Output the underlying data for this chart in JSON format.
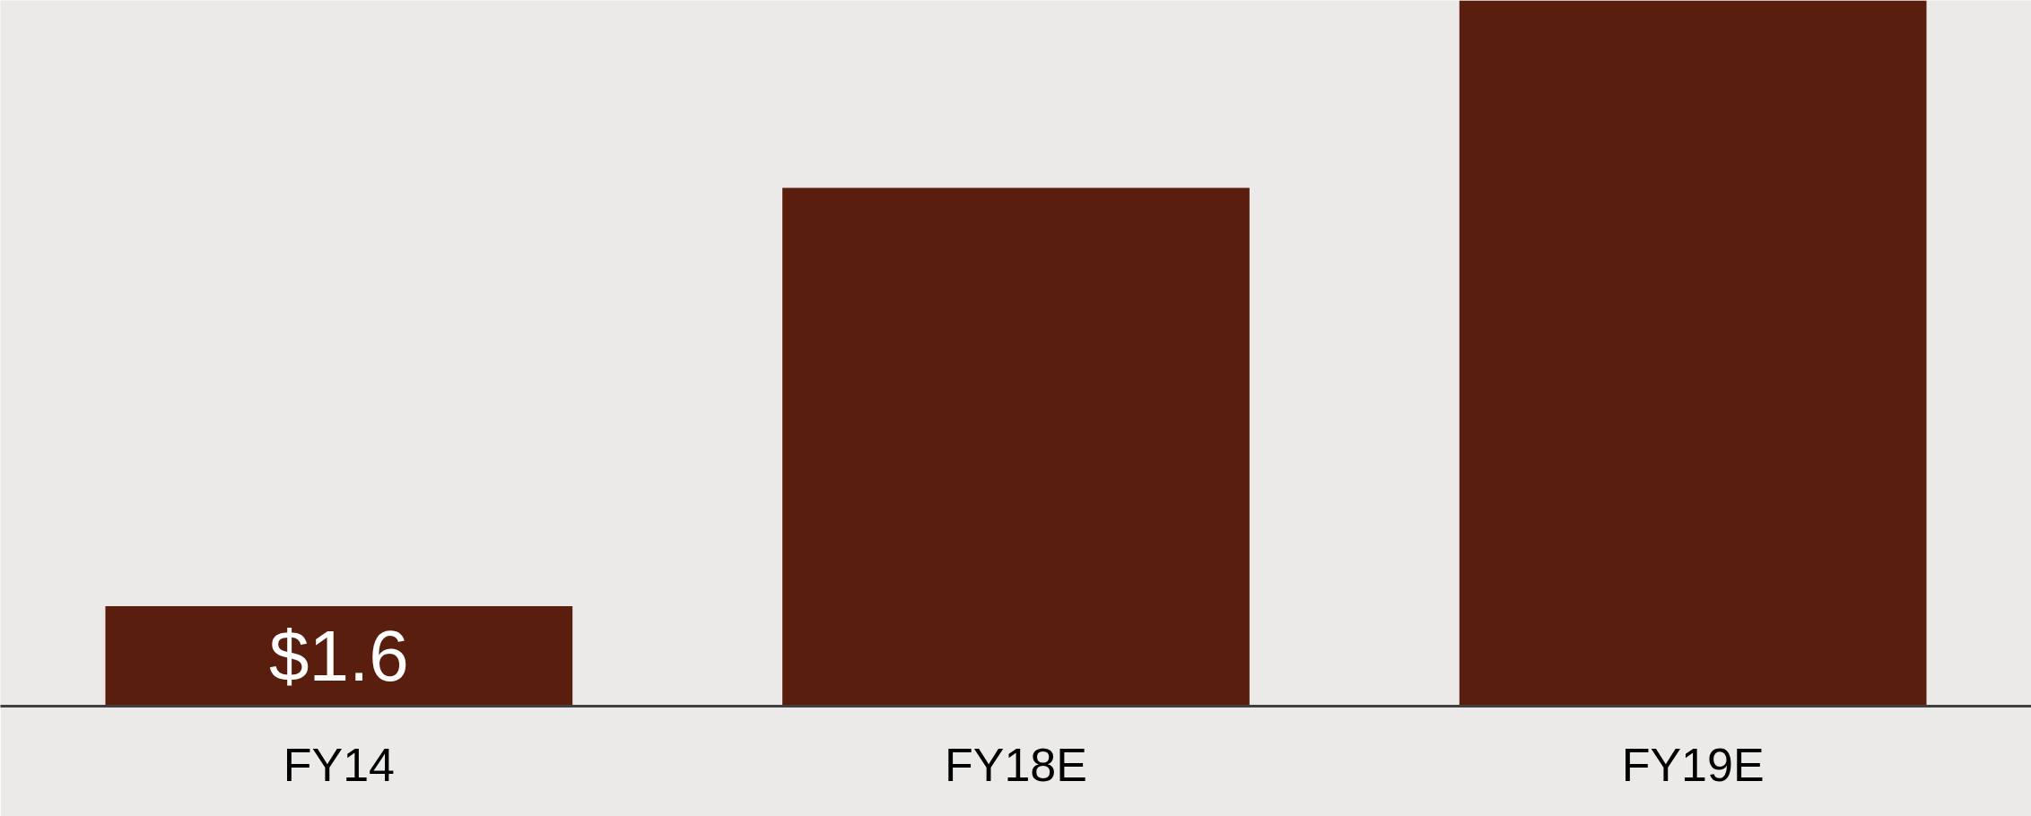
{
  "chart_data": {
    "type": "bar",
    "categories": [
      "FY14",
      "FY18E",
      "FY19E"
    ],
    "values": [
      1.6,
      8.3,
      11.3
    ],
    "value_labels": [
      "$1.6",
      null,
      null
    ],
    "color": "#5a1e0e",
    "ylim": [
      0,
      11.3
    ],
    "tick_labels": "x"
  }
}
